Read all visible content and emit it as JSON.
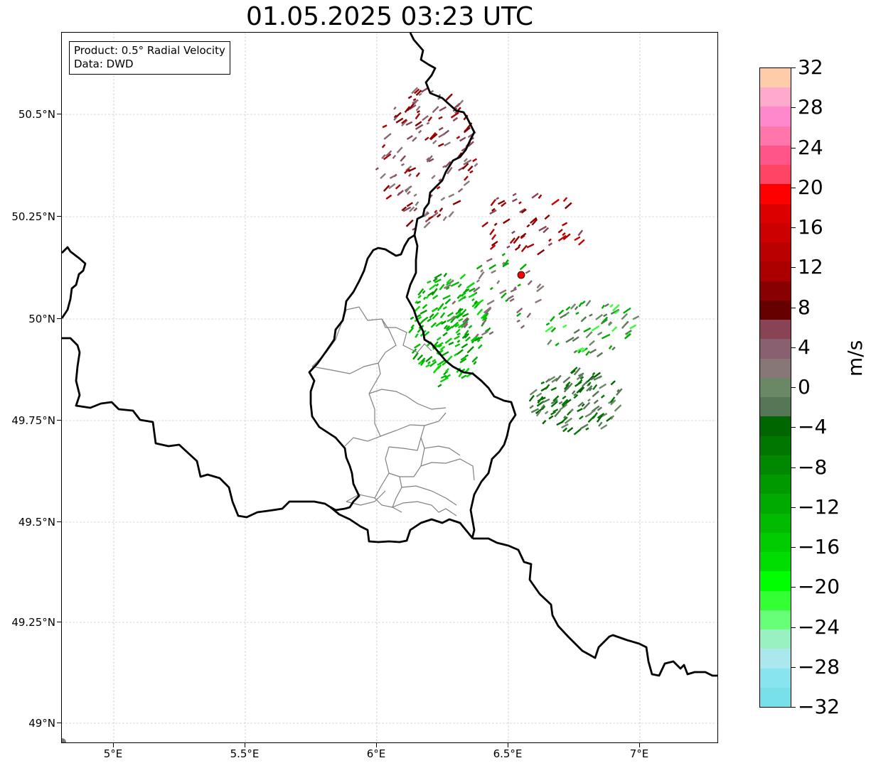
{
  "title": "01.05.2025 03:23 UTC",
  "info": {
    "product": "Product: 0.5° Radial Velocity",
    "data": "Data: DWD"
  },
  "lat_labels": [
    "50.5°N",
    "50.25°N",
    "50°N",
    "49.75°N",
    "49.5°N",
    "49.25°N",
    "49°N"
  ],
  "lon_labels": [
    "5°E",
    "5.5°E",
    "6°E",
    "6.5°E",
    "7°E"
  ],
  "colorbar": {
    "unit": "m/s",
    "tick_labels": [
      "32",
      "28",
      "24",
      "20",
      "16",
      "12",
      "8",
      "4",
      "0",
      "−4",
      "−8",
      "−12",
      "−16",
      "−20",
      "−24",
      "−28",
      "−32"
    ],
    "range": [
      -32,
      32
    ],
    "colors": [
      "#ffccaa",
      "#ffaacc",
      "#ff88cc",
      "#ff77aa",
      "#ff5588",
      "#ff4466",
      "#ff0000",
      "#dd0000",
      "#cc0000",
      "#bb0000",
      "#aa0000",
      "#880000",
      "#660000",
      "#884455",
      "#886070",
      "#887777",
      "#6a8866",
      "#557755",
      "#006600",
      "#007700",
      "#008800",
      "#009900",
      "#00aa00",
      "#00bb00",
      "#00cc00",
      "#00dd00",
      "#00ff00",
      "#33ff33",
      "#66ff77",
      "#99f0c0",
      "#aae8ee",
      "#88e4ee",
      "#77e0e8"
    ]
  },
  "map": {
    "extent": {
      "lon": [
        4.8,
        7.3
      ],
      "lat": [
        48.95,
        50.7
      ]
    },
    "radar_site": {
      "lon": 6.55,
      "lat": 50.11,
      "color": "#ff0000"
    },
    "border_color": "#000000",
    "region_color": "#808080",
    "grid": true
  }
}
